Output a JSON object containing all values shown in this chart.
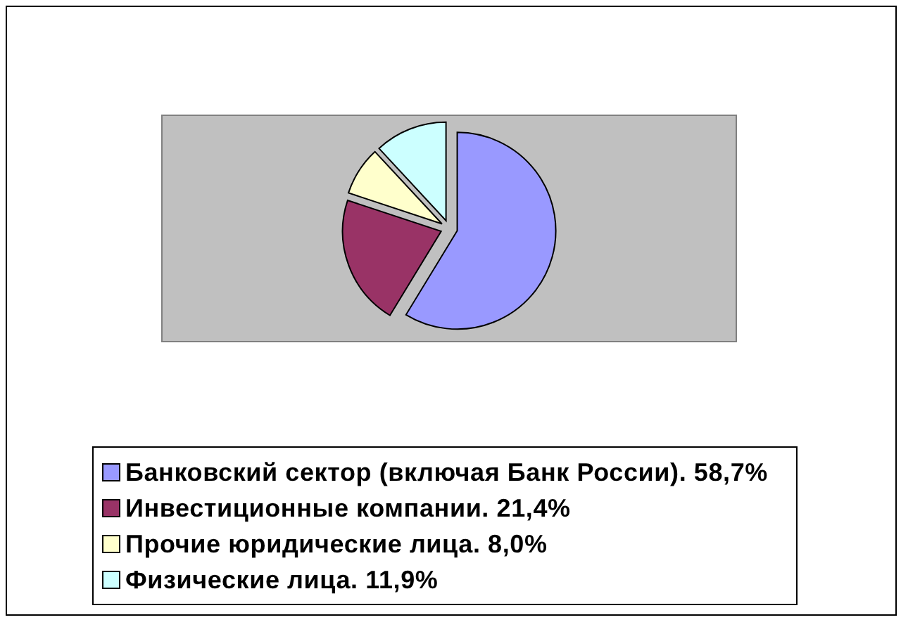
{
  "chart_data": {
    "type": "pie",
    "categories": [
      "Банковский сектор (включая Банк России). 58,7%",
      "Инвестиционные компании. 21,4%",
      "Прочие юридические лица. 8,0%",
      "Физические лица. 11,9%"
    ],
    "values": [
      58.7,
      21.4,
      8.0,
      11.9
    ],
    "colors": [
      "#9999ff",
      "#993366",
      "#ffffcc",
      "#ccffff"
    ],
    "legend": "bottom"
  }
}
